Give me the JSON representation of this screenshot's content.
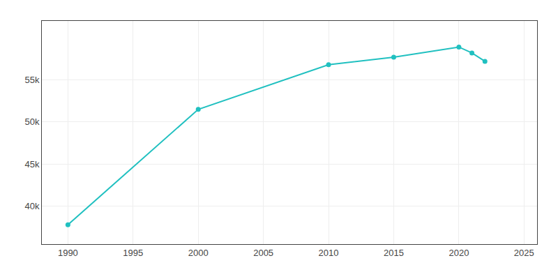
{
  "chart_data": {
    "type": "line",
    "x": [
      1990,
      2000,
      2010,
      2015,
      2020,
      2021,
      2022
    ],
    "values": [
      37800,
      51500,
      56800,
      57700,
      58900,
      58200,
      57200
    ],
    "color": "#20C0C0",
    "marker": "circle",
    "xlim": [
      1988,
      2026
    ],
    "xticks": [
      1990,
      1995,
      2000,
      2005,
      2010,
      2015,
      2020,
      2025
    ],
    "ylim": [
      35500,
      62000
    ],
    "yticks": [
      {
        "value": 40000,
        "label": "40k"
      },
      {
        "value": 45000,
        "label": "45k"
      },
      {
        "value": 50000,
        "label": "50k"
      },
      {
        "value": 55000,
        "label": "55k"
      }
    ],
    "grid": true
  }
}
